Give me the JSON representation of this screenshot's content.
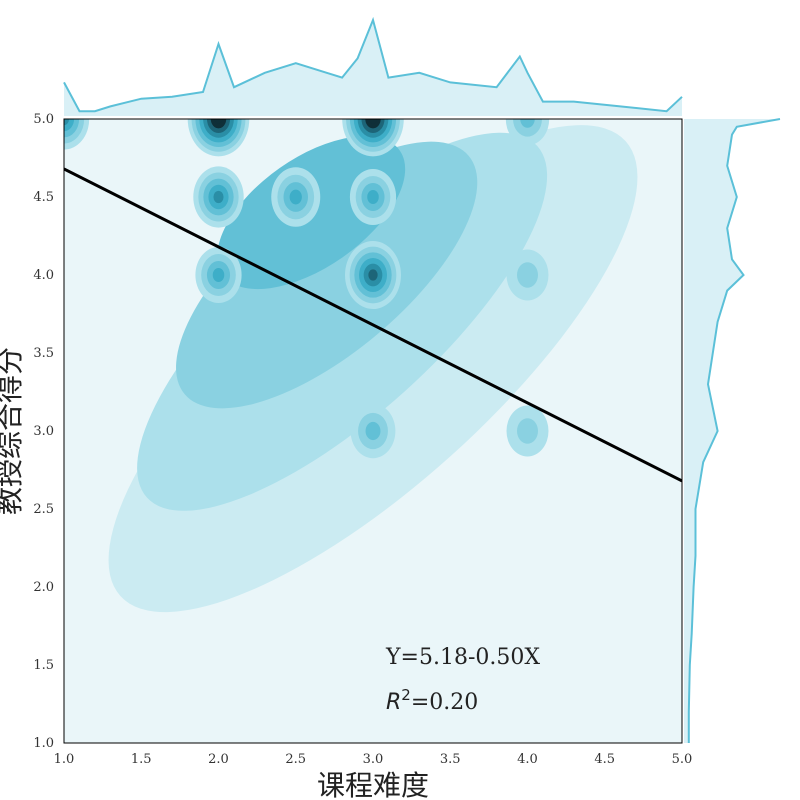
{
  "chart_data": {
    "type": "kde-joint",
    "xlabel": "课程难度",
    "ylabel": "教授综合得分",
    "xlim": [
      1.0,
      5.0
    ],
    "ylim": [
      1.0,
      5.0
    ],
    "x_ticks": [
      "1.0",
      "1.5",
      "2.0",
      "2.5",
      "3.0",
      "3.5",
      "4.0",
      "4.5",
      "5.0"
    ],
    "y_ticks": [
      "1.0",
      "1.5",
      "2.0",
      "2.5",
      "3.0",
      "3.5",
      "4.0",
      "4.5",
      "5.0"
    ],
    "regression": {
      "intercept": 5.18,
      "slope": -0.5,
      "r2": 0.2
    },
    "annotation_equation": "Y=5.18-0.50X",
    "annotation_r2_label": "R",
    "annotation_r2_exp": "2",
    "annotation_r2_value": "=0.20",
    "density_peaks": [
      {
        "x": 2.0,
        "y": 5.0,
        "level": 1.0
      },
      {
        "x": 3.0,
        "y": 5.0,
        "level": 1.0
      },
      {
        "x": 3.0,
        "y": 4.0,
        "level": 0.8
      },
      {
        "x": 2.0,
        "y": 4.5,
        "level": 0.6
      },
      {
        "x": 1.0,
        "y": 5.0,
        "level": 0.6
      },
      {
        "x": 2.0,
        "y": 4.0,
        "level": 0.45
      },
      {
        "x": 3.0,
        "y": 4.5,
        "level": 0.45
      },
      {
        "x": 3.0,
        "y": 3.0,
        "level": 0.4
      },
      {
        "x": 4.0,
        "y": 5.0,
        "level": 0.35
      },
      {
        "x": 4.0,
        "y": 4.0,
        "level": 0.3
      },
      {
        "x": 4.0,
        "y": 3.0,
        "level": 0.3
      },
      {
        "x": 2.5,
        "y": 4.5,
        "level": 0.55
      }
    ],
    "marginal_x": {
      "x": [
        1.0,
        1.1,
        1.2,
        1.3,
        1.5,
        1.7,
        1.9,
        2.0,
        2.1,
        2.3,
        2.5,
        2.7,
        2.8,
        2.9,
        3.0,
        3.1,
        3.3,
        3.5,
        3.8,
        3.95,
        4.0,
        4.1,
        4.3,
        4.6,
        4.9,
        5.0
      ],
      "density": [
        0.35,
        0.05,
        0.05,
        0.1,
        0.18,
        0.2,
        0.25,
        0.75,
        0.3,
        0.45,
        0.55,
        0.45,
        0.4,
        0.6,
        1.0,
        0.4,
        0.45,
        0.35,
        0.3,
        0.62,
        0.45,
        0.15,
        0.15,
        0.1,
        0.05,
        0.2
      ]
    },
    "marginal_y": {
      "y": [
        5.0,
        4.95,
        4.9,
        4.7,
        4.5,
        4.3,
        4.1,
        4.0,
        3.9,
        3.7,
        3.5,
        3.3,
        3.0,
        2.8,
        2.5,
        2.2,
        2.0,
        1.7,
        1.5,
        1.2,
        1.0
      ],
      "density": [
        1.0,
        0.55,
        0.5,
        0.45,
        0.55,
        0.45,
        0.5,
        0.62,
        0.45,
        0.35,
        0.3,
        0.25,
        0.35,
        0.2,
        0.12,
        0.12,
        0.1,
        0.08,
        0.06,
        0.05,
        0.05
      ]
    },
    "colors": {
      "background": "#eaf6f9",
      "levels": [
        "#cbebf2",
        "#ace0eb",
        "#8ad1e1",
        "#62c0d6",
        "#3eaec8",
        "#2a8ea6",
        "#1d6578",
        "#0f2f38"
      ],
      "marginal_line": "#5bc0d8",
      "marginal_fill": "#d9f0f6",
      "regression_line": "#000000"
    }
  }
}
